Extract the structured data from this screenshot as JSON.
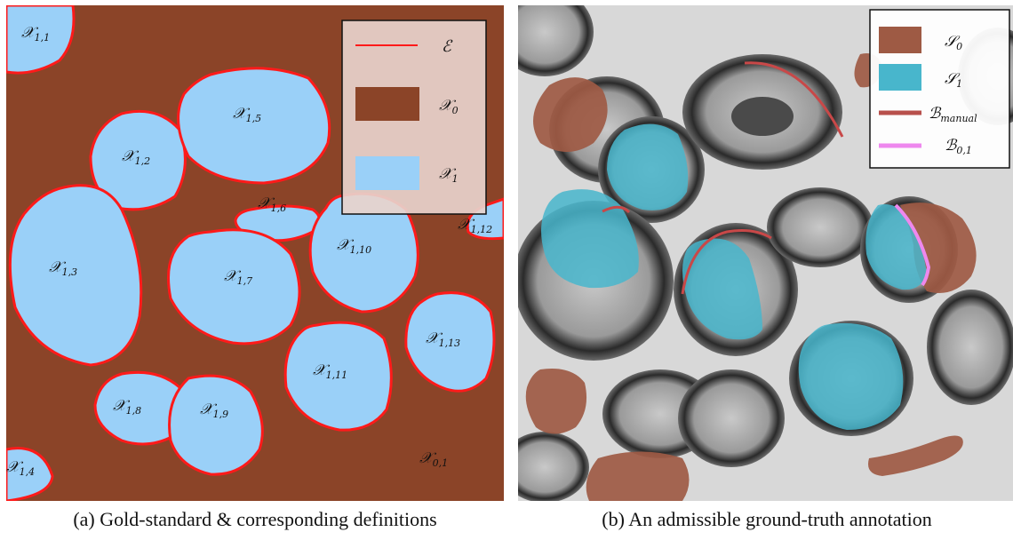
{
  "colors": {
    "background_class": "#8b4428",
    "object_class": "#9ad0f8",
    "edge": "#ff1a1a",
    "legend_bg_a": "#e8d3cc",
    "s0": "#9e5a44",
    "s1": "#48b6cc",
    "b_manual": "#b8504c",
    "b01": "#ee88ee"
  },
  "panel_a": {
    "region_labels": [
      "𝒳1,1",
      "𝒳1,2",
      "𝒳1,3",
      "𝒳1,4",
      "𝒳1,5",
      "𝒳1,6",
      "𝒳1,7",
      "𝒳1,8",
      "𝒳1,9",
      "𝒳1,10",
      "𝒳1,11",
      "𝒳1,12",
      "𝒳1,13",
      "𝒳0,1"
    ],
    "legend": {
      "edge_label": "ℰ",
      "x0_label": "𝒳0",
      "x1_label": "𝒳1"
    },
    "caption": "(a) Gold-standard & corresponding definitions"
  },
  "panel_b": {
    "legend": {
      "s0_label": "𝒮0",
      "s1_label": "𝒮1",
      "b_manual_label": "ℬmanual",
      "b01_label": "ℬ0,1"
    },
    "caption": "(b) An admissible ground-truth annotation"
  }
}
